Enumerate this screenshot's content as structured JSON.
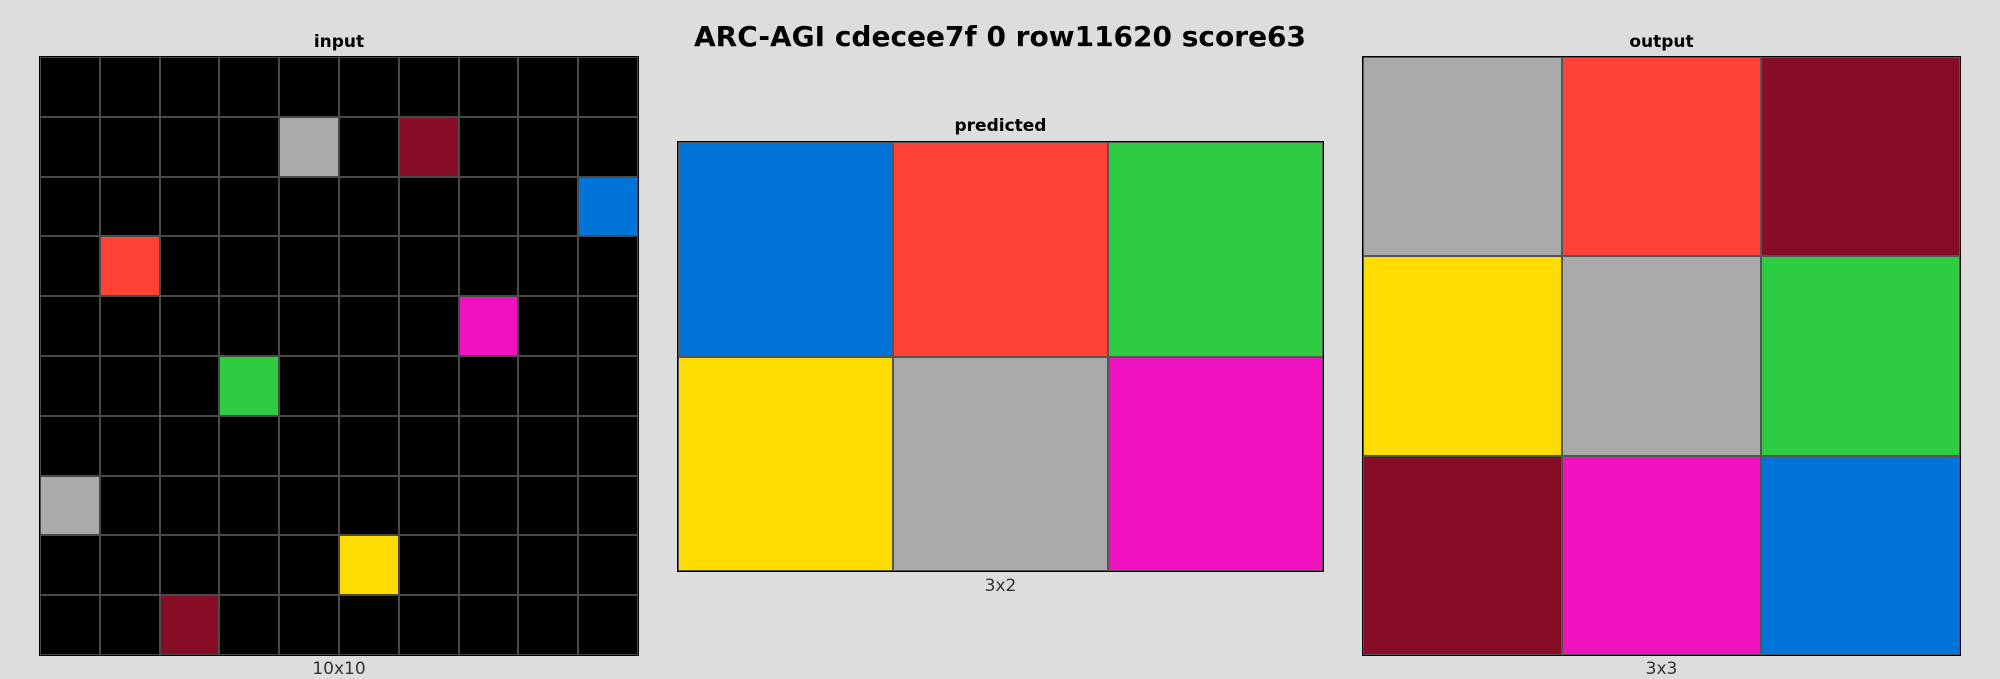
{
  "title": "ARC-AGI cdecee7f 0 row11620 score63",
  "palette": {
    "0": "#000000",
    "1": "#0074D9",
    "2": "#FF4136",
    "3": "#2ECC40",
    "4": "#FFDC00",
    "5": "#AAAAAA",
    "6": "#F012BE",
    "9": "#870C25"
  },
  "panels": {
    "input": {
      "label": "input",
      "dims": "10x10",
      "rows": 10,
      "cols": 10,
      "cells": [
        [
          0,
          0,
          0,
          0,
          0,
          0,
          0,
          0,
          0,
          0
        ],
        [
          0,
          0,
          0,
          0,
          5,
          0,
          9,
          0,
          0,
          0
        ],
        [
          0,
          0,
          0,
          0,
          0,
          0,
          0,
          0,
          0,
          1
        ],
        [
          0,
          2,
          0,
          0,
          0,
          0,
          0,
          0,
          0,
          0
        ],
        [
          0,
          0,
          0,
          0,
          0,
          0,
          0,
          6,
          0,
          0
        ],
        [
          0,
          0,
          0,
          3,
          0,
          0,
          0,
          0,
          0,
          0
        ],
        [
          0,
          0,
          0,
          0,
          0,
          0,
          0,
          0,
          0,
          0
        ],
        [
          5,
          0,
          0,
          0,
          0,
          0,
          0,
          0,
          0,
          0
        ],
        [
          0,
          0,
          0,
          0,
          0,
          4,
          0,
          0,
          0,
          0
        ],
        [
          0,
          0,
          9,
          0,
          0,
          0,
          0,
          0,
          0,
          0
        ]
      ]
    },
    "predicted": {
      "label": "predicted",
      "dims": "3x2",
      "rows": 2,
      "cols": 3,
      "cells": [
        [
          1,
          2,
          3
        ],
        [
          4,
          5,
          6
        ]
      ]
    },
    "output": {
      "label": "output",
      "dims": "3x3",
      "rows": 3,
      "cols": 3,
      "cells": [
        [
          5,
          2,
          9
        ],
        [
          4,
          5,
          3
        ],
        [
          9,
          6,
          1
        ]
      ]
    }
  }
}
